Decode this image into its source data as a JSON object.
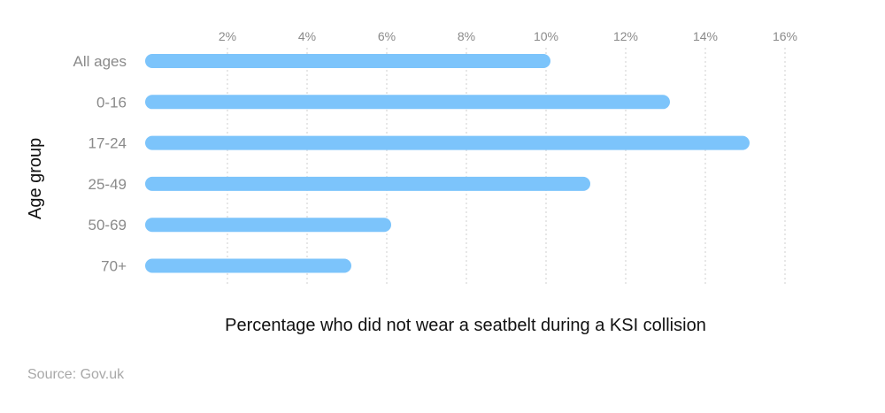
{
  "chart_data": {
    "type": "bar",
    "orientation": "horizontal",
    "title": "",
    "xlabel": "Percentage who did not wear a seatbelt during a KSI collision",
    "ylabel": "Age group",
    "categories": [
      "All ages",
      "0-16",
      "17-24",
      "25-49",
      "50-69",
      "70+"
    ],
    "values": [
      10,
      13,
      15,
      11,
      6,
      5
    ],
    "xlim": [
      0,
      16
    ],
    "x_ticks": [
      "2%",
      "4%",
      "6%",
      "8%",
      "10%",
      "12%",
      "14%",
      "16%"
    ],
    "x_tick_values": [
      2,
      4,
      6,
      8,
      10,
      12,
      14,
      16
    ],
    "grid": "vertical dotted",
    "tick_position": "top",
    "bar_color": "#7cc4fb",
    "source": "Source: Gov.uk"
  }
}
